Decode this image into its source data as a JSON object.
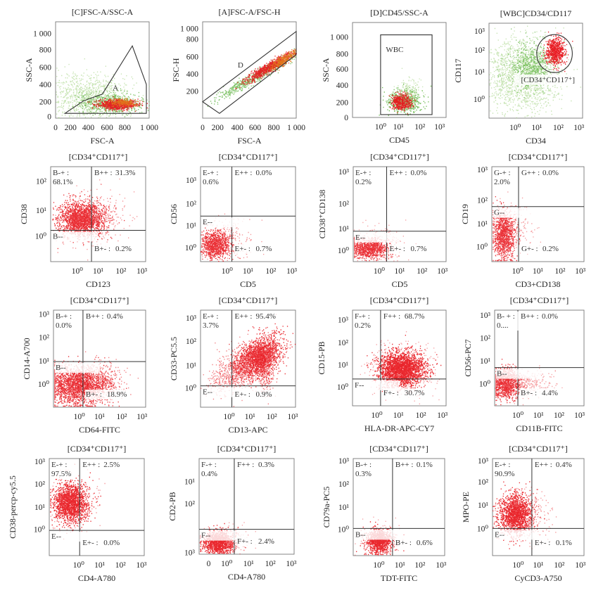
{
  "chart_data": [
    {
      "type": "scatter",
      "title": "[C]FSC-A/SSC-A",
      "xlabel": "FSC-A",
      "ylabel": "SSC-A",
      "scale": "linear",
      "xticks": [
        "0",
        "200",
        "400",
        "600",
        "800",
        "1 000"
      ],
      "yticks": [
        "0",
        "200",
        "400",
        "600",
        "800",
        "1 000"
      ],
      "gates": [
        {
          "label": "A"
        }
      ]
    },
    {
      "type": "scatter",
      "title": "[A]FSC-A/FSC-H",
      "xlabel": "FSC-A",
      "ylabel": "FSC-H",
      "scale": "linear",
      "xticks": [
        "0",
        "200",
        "400",
        "600",
        "800",
        "1 000"
      ],
      "yticks": [
        "200",
        "400",
        "600",
        "800",
        "1 000"
      ],
      "gates": [
        {
          "label": "D"
        }
      ]
    },
    {
      "type": "scatter",
      "title": "[D]CD45/SSC-A",
      "xlabel": "CD45",
      "ylabel": "SSC-A",
      "scale": "log-x",
      "xticks": [
        "10⁰",
        "10¹",
        "10²",
        "10³"
      ],
      "yticks": [
        "0",
        "200",
        "400",
        "600",
        "800",
        "1 000"
      ],
      "gates": [
        {
          "label": "WBC"
        }
      ]
    },
    {
      "type": "scatter",
      "title": "[WBC]CD34/CD117",
      "xlabel": "CD34",
      "ylabel": "CD117",
      "scale": "log",
      "xticks": [
        "10⁰",
        "10¹",
        "10²",
        "10³"
      ],
      "yticks": [
        "10⁰",
        "10¹",
        "10²",
        "10³"
      ],
      "gates": [
        {
          "label": "[CD34⁺CD117⁺]"
        }
      ]
    },
    {
      "type": "scatter",
      "title": "[CD34⁺CD117⁺]",
      "xlabel": "CD123",
      "ylabel": "CD38",
      "xticks": [
        "10⁰",
        "10¹",
        "10²",
        "10³"
      ],
      "yticks": [
        "10⁰",
        "10¹",
        "10²"
      ],
      "quadrants": {
        "UL": {
          "label": "B-+ :",
          "value": "68.1%"
        },
        "UR": {
          "label": "B++ :",
          "value": "31.3%"
        },
        "LL": {
          "label": "B--",
          "value": ""
        },
        "LR": {
          "label": "B+- :",
          "value": "0.2%"
        }
      }
    },
    {
      "type": "scatter",
      "title": "[CD34⁺CD117⁺]",
      "xlabel": "CD5",
      "ylabel": "CD56",
      "xticks": [
        "10⁰",
        "10¹",
        "10²",
        "10³"
      ],
      "yticks": [
        "10⁰",
        "10¹",
        "10²",
        "10³"
      ],
      "quadrants": {
        "UL": {
          "label": "E-+ :",
          "value": "0.6%"
        },
        "UR": {
          "label": "E++ :",
          "value": "0.0%"
        },
        "LL": {
          "label": "E--",
          "value": ""
        },
        "LR": {
          "label": "E+- :",
          "value": "0.7%"
        }
      }
    },
    {
      "type": "scatter",
      "title": "[CD34⁺CD117⁺]",
      "xlabel": "CD5",
      "ylabel": "CD38⁺CD138",
      "xticks": [
        "10⁰",
        "10¹",
        "10²",
        "10³"
      ],
      "yticks": [
        "10⁰",
        "10¹",
        "10²",
        "10³"
      ],
      "quadrants": {
        "UL": {
          "label": "E-+ :",
          "value": "0.2%"
        },
        "UR": {
          "label": "E++ :",
          "value": "0.0%"
        },
        "LL": {
          "label": "E--",
          "value": ""
        },
        "LR": {
          "label": "E+- :",
          "value": "0.7%"
        }
      }
    },
    {
      "type": "scatter",
      "title": "[CD34⁺CD117⁺]",
      "xlabel": "CD3+CD138",
      "ylabel": "CD19",
      "xticks": [
        "10⁰",
        "10¹",
        "10²",
        "10³"
      ],
      "yticks": [
        "10⁰",
        "10¹",
        "10²",
        "10³"
      ],
      "quadrants": {
        "UL": {
          "label": "G-+ :",
          "value": "2.0%"
        },
        "UR": {
          "label": "G++ :",
          "value": "0.0%"
        },
        "LL": {
          "label": "G--",
          "value": ""
        },
        "LR": {
          "label": "G+- :",
          "value": "0.2%"
        }
      }
    },
    {
      "type": "scatter",
      "title": "[CD34⁺CD117⁺]",
      "xlabel": "CD64-FITC",
      "ylabel": "CD14-A700",
      "xticks": [
        "10⁰",
        "10¹",
        "10²",
        "10³"
      ],
      "yticks": [
        "10⁰",
        "10¹",
        "10²",
        "10³"
      ],
      "quadrants": {
        "UL": {
          "label": "B-+ :",
          "value": "0.0%"
        },
        "UR": {
          "label": "B++ :",
          "value": "0.4%"
        },
        "LL": {
          "label": "B--",
          "value": ""
        },
        "LR": {
          "label": "B+- :",
          "value": "18.9%"
        }
      }
    },
    {
      "type": "scatter",
      "title": "[CD34⁺CD117⁺]",
      "xlabel": "CD13-APC",
      "ylabel": "CD33-PC5.5",
      "xticks": [
        "10⁰",
        "10¹",
        "10²",
        "10³"
      ],
      "yticks": [
        "10⁰",
        "10¹",
        "10²",
        "10³"
      ],
      "quadrants": {
        "UL": {
          "label": "E-+ :",
          "value": "3.7%"
        },
        "UR": {
          "label": "E++ :",
          "value": "95.4%"
        },
        "LL": {
          "label": "E--",
          "value": ""
        },
        "LR": {
          "label": "E+- :",
          "value": "0.9%"
        }
      }
    },
    {
      "type": "scatter",
      "title": "[CD34⁺CD117⁺]",
      "xlabel": "HLA-DR-APC-CY7",
      "ylabel": "CD15-PB",
      "xticks": [
        "10⁰",
        "10¹",
        "10²",
        "10³"
      ],
      "yticks": [
        "10⁰",
        "10¹",
        "10²",
        "10³"
      ],
      "quadrants": {
        "UL": {
          "label": "F-+ :",
          "value": "0.2%"
        },
        "UR": {
          "label": "F++ :",
          "value": "68.7%"
        },
        "LL": {
          "label": "F--",
          "value": ""
        },
        "LR": {
          "label": "F+- :",
          "value": "30.7%"
        }
      }
    },
    {
      "type": "scatter",
      "title": "[CD34⁺CD117⁺]",
      "xlabel": "CD11B-FITC",
      "ylabel": "CD56-PC7",
      "xticks": [
        "10⁰",
        "10¹",
        "10²",
        "10³"
      ],
      "yticks": [
        "10⁰",
        "10¹",
        "10²",
        "10³"
      ],
      "quadrants": {
        "UL": {
          "label": "B- + :",
          "value": "0...."
        },
        "UR": {
          "label": "B++ :",
          "value": "0.0%"
        },
        "LL": {
          "label": "B--",
          "value": ""
        },
        "LR": {
          "label": "B+- :",
          "value": "4.4%"
        }
      }
    },
    {
      "type": "scatter",
      "title": "[CD34⁺CD117⁺]",
      "xlabel": "CD4-A780",
      "ylabel": "CD38-percp-cy5.5",
      "xticks": [
        "10⁰",
        "10¹",
        "10²",
        "10³"
      ],
      "yticks": [
        "10⁰",
        "10¹",
        "10²",
        "10³"
      ],
      "quadrants": {
        "UL": {
          "label": "E-+ :",
          "value": "97.5%"
        },
        "UR": {
          "label": "E++ :",
          "value": "2.5%"
        },
        "LL": {
          "label": "E--",
          "value": ""
        },
        "LR": {
          "label": "E+- :",
          "value": "0.0%"
        }
      }
    },
    {
      "type": "scatter",
      "title": "[CD34⁺CD117⁺]",
      "xlabel": "CD4-A780",
      "ylabel": "CD2-PB",
      "xticks": [
        "0",
        "10⁰",
        "10¹",
        "10²",
        "10³"
      ],
      "yticks": [
        "10¹",
        "10²",
        "10³"
      ],
      "quadrants": {
        "UL": {
          "label": "F-+ :",
          "value": "0.4%"
        },
        "UR": {
          "label": "F++ :",
          "value": "0.3%"
        },
        "LL": {
          "label": "F--",
          "value": ""
        },
        "LR": {
          "label": "F+- :",
          "value": "2.4%"
        }
      }
    },
    {
      "type": "scatter",
      "title": "[CD34⁺CD117⁺]",
      "xlabel": "TDT-FITC",
      "ylabel": "CD79a-PC5",
      "xticks": [
        "10⁰",
        "10¹",
        "10²",
        "10³"
      ],
      "yticks": [
        "10⁰",
        "10¹",
        "10²",
        "10³"
      ],
      "quadrants": {
        "UL": {
          "label": "B-+ :",
          "value": "0.3%"
        },
        "UR": {
          "label": "B++ :",
          "value": "0.1%"
        },
        "LL": {
          "label": "B--",
          "value": ""
        },
        "LR": {
          "label": "B+- :",
          "value": "0.6%"
        }
      }
    },
    {
      "type": "scatter",
      "title": "[CD34⁺CD117⁺]",
      "xlabel": "CyCD3-A750",
      "ylabel": "MPO-PE",
      "xticks": [
        "10⁰",
        "10¹",
        "10²",
        "10³"
      ],
      "yticks": [
        "10⁰",
        "10¹",
        "10²",
        "10³"
      ],
      "quadrants": {
        "UL": {
          "label": "E-+ :",
          "value": "90.9%"
        },
        "UR": {
          "label": "E++ :",
          "value": "0.4%"
        },
        "LL": {
          "label": "E--",
          "value": ""
        },
        "LR": {
          "label": "E+- :",
          "value": "0.1%"
        }
      }
    }
  ],
  "colors": {
    "event_red": "#e8141b",
    "event_dark_red": "#c30f15",
    "event_green": "#58b03a",
    "event_light_green": "#9fd07c",
    "event_orange": "#e07b1a"
  }
}
